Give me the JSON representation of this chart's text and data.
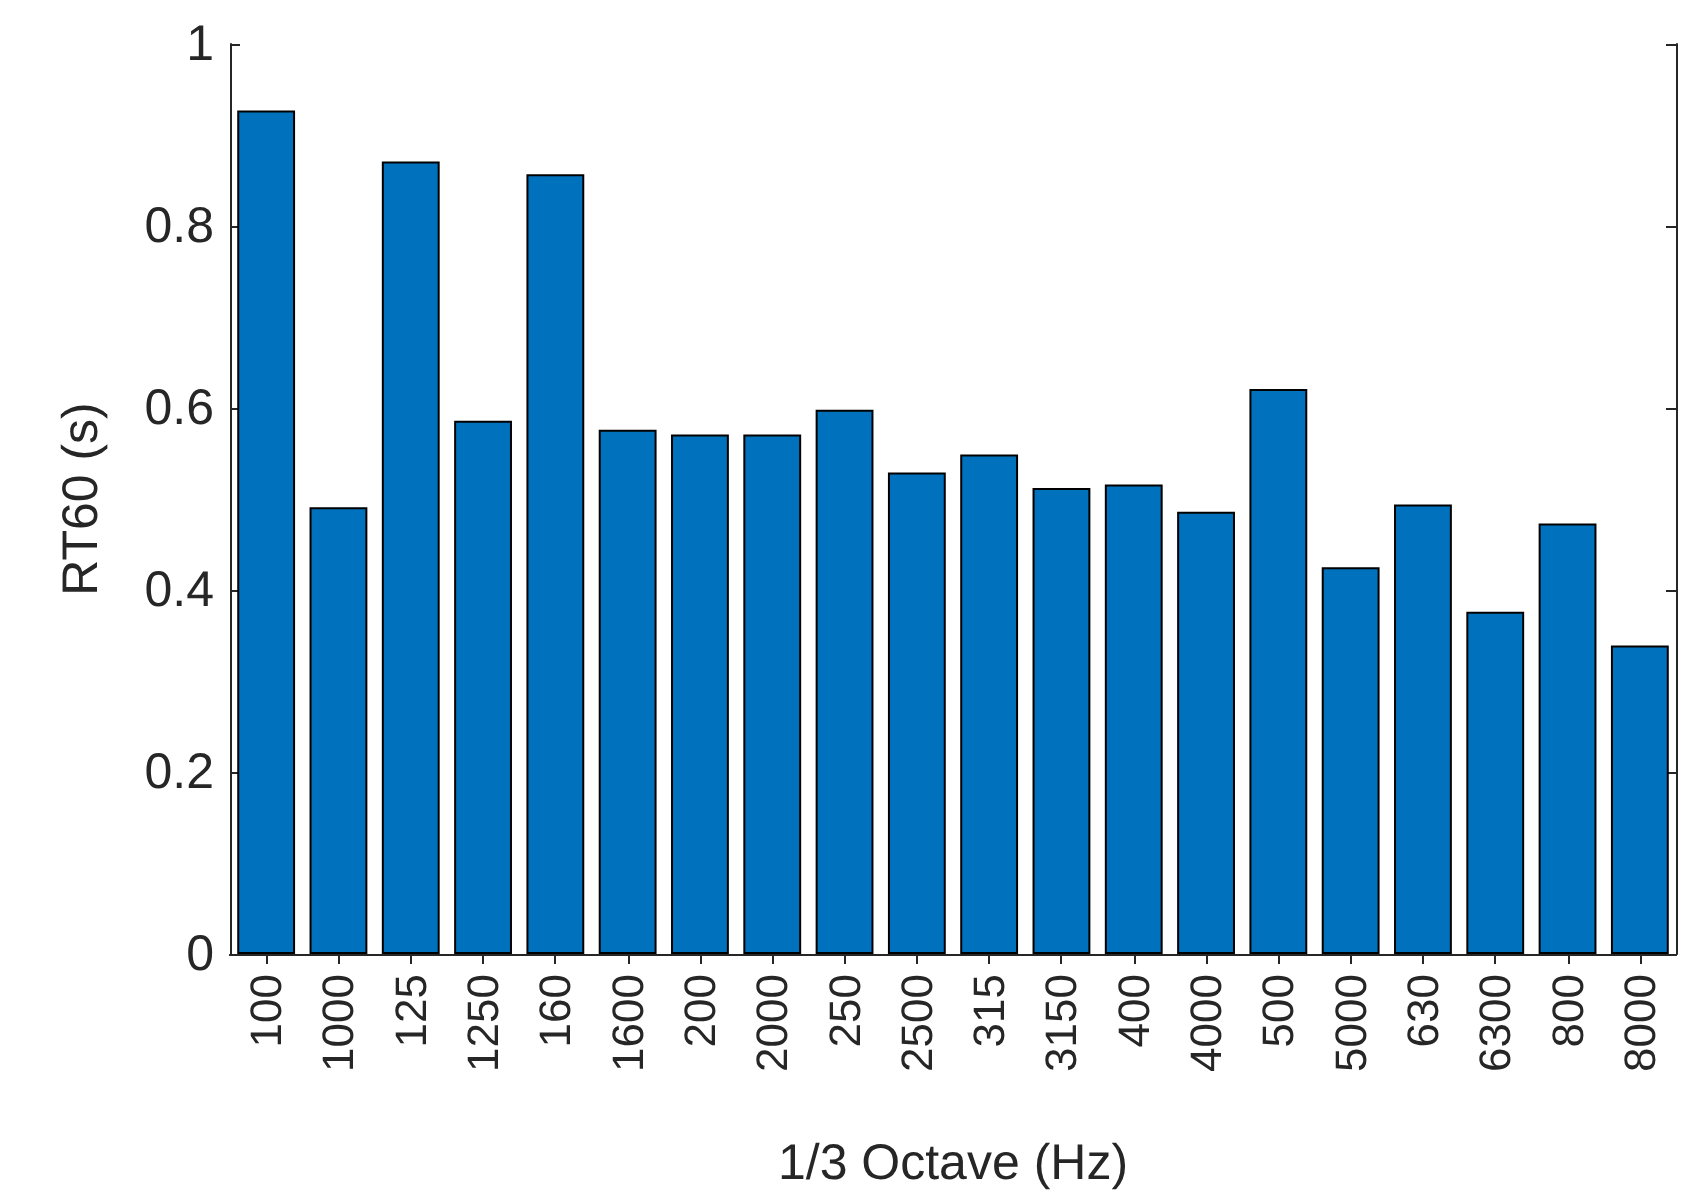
{
  "chart_data": {
    "type": "bar",
    "xlabel": "1/3 Octave (Hz)",
    "ylabel": "RT60 (s)",
    "categories": [
      "100",
      "1000",
      "125",
      "1250",
      "160",
      "1600",
      "200",
      "2000",
      "250",
      "2500",
      "315",
      "3150",
      "400",
      "4000",
      "500",
      "5000",
      "630",
      "6300",
      "800",
      "8000"
    ],
    "values": [
      0.927,
      0.491,
      0.871,
      0.586,
      0.857,
      0.576,
      0.571,
      0.571,
      0.598,
      0.529,
      0.549,
      0.512,
      0.516,
      0.486,
      0.621,
      0.425,
      0.494,
      0.376,
      0.473,
      0.339
    ],
    "color": "#0072bd",
    "ylim": [
      0,
      1
    ],
    "yticks": [
      0,
      0.2,
      0.4,
      0.6,
      0.8,
      1
    ],
    "grid": false
  }
}
